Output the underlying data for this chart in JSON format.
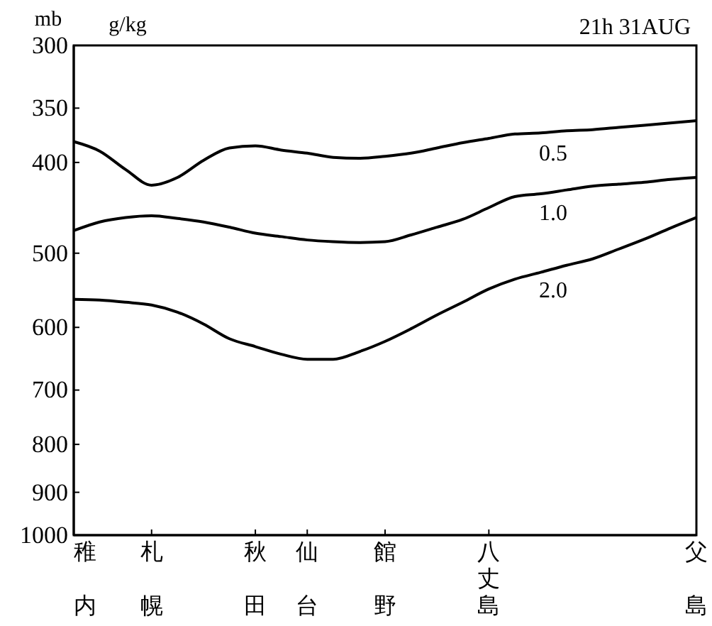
{
  "chart_data": {
    "type": "line",
    "title": "21h 31AUG",
    "ylabel": "mb",
    "legend_title": "g/kg",
    "log": true,
    "grid": false,
    "marker": "none",
    "line_style": "solid",
    "categories": [
      "稚内",
      null,
      null,
      "札幌",
      null,
      null,
      null,
      "秋田",
      null,
      "仙台",
      null,
      null,
      "館野",
      null,
      null,
      null,
      "八丈島",
      null,
      null,
      null,
      null,
      null,
      null,
      null,
      "父島"
    ],
    "ylim": [
      1000,
      300
    ],
    "yticks": [
      300,
      350,
      400,
      500,
      600,
      700,
      800,
      900,
      1000
    ],
    "series": [
      {
        "name": "0.5",
        "color": "#000000",
        "values": [
          380,
          389,
          407,
          423,
          415,
          398,
          386,
          384,
          388,
          391,
          395,
          396,
          394,
          391,
          386,
          381,
          377,
          373,
          372,
          370,
          369,
          367,
          365,
          363,
          361
        ]
      },
      {
        "name": "1.0",
        "color": "#000000",
        "values": [
          473,
          463,
          458,
          456,
          459,
          463,
          469,
          476,
          480,
          484,
          486,
          487,
          486,
          478,
          469,
          460,
          447,
          435,
          432,
          428,
          424,
          422,
          420,
          417,
          415
        ]
      },
      {
        "name": "2.0",
        "color": "#000000",
        "values": [
          560,
          561,
          564,
          568,
          578,
          595,
          617,
          629,
          641,
          649,
          649,
          637,
          621,
          602,
          582,
          564,
          546,
          533,
          524,
          515,
          507,
          495,
          483,
          470,
          458
        ]
      }
    ]
  }
}
